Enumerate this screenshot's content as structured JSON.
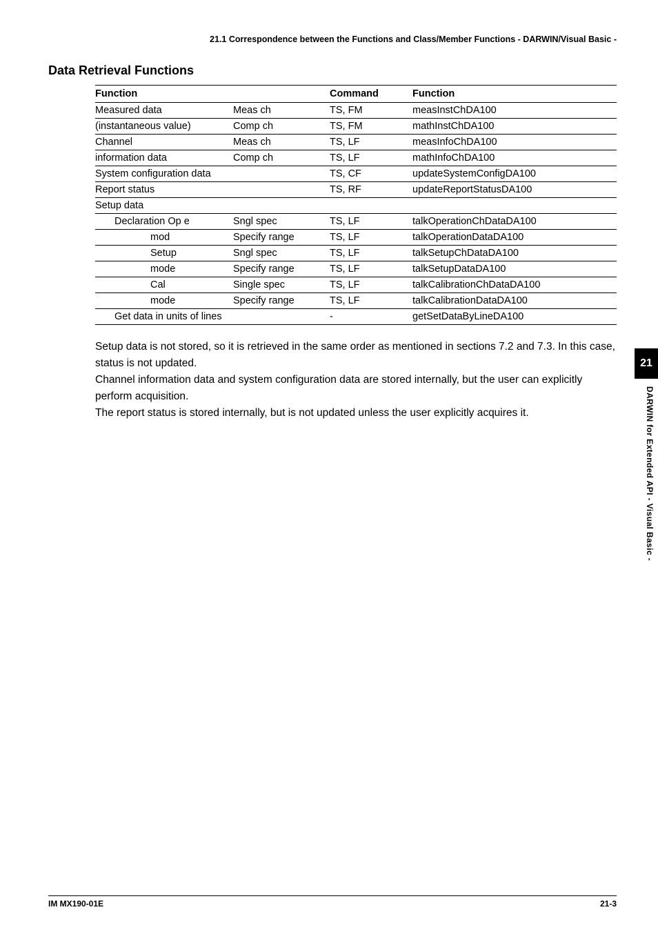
{
  "running_head": "21.1  Correspondence between the Functions and  Class/Member Functions - DARWIN/Visual Basic -",
  "section_title": "Data Retrieval Functions",
  "table": {
    "headers": [
      "Function",
      "",
      "Command",
      "Function"
    ],
    "rows": [
      {
        "c0": "Measured data",
        "c1": "Meas ch",
        "c2": "TS, FM",
        "c3": "measInstChDA100",
        "indent": 0,
        "border": true
      },
      {
        "c0": "(instantaneous value)",
        "c1": "Comp ch",
        "c2": "TS, FM",
        "c3": "mathInstChDA100",
        "indent": 0,
        "border": true
      },
      {
        "c0": "Channel",
        "c1": "Meas ch",
        "c2": "TS, LF",
        "c3": "measInfoChDA100",
        "indent": 0,
        "border": true
      },
      {
        "c0": "information data",
        "c1": "Comp ch",
        "c2": "TS, LF",
        "c3": "mathInfoChDA100",
        "indent": 0,
        "border": true
      },
      {
        "c0": "System configuration data",
        "c1": "",
        "c2": "TS, CF",
        "c3": "updateSystemConfigDA100",
        "indent": 0,
        "border": true
      },
      {
        "c0": "Report status",
        "c1": "",
        "c2": "TS, RF",
        "c3": "updateReportStatusDA100",
        "indent": 0,
        "border": true
      },
      {
        "c0": "Setup data",
        "c1": "",
        "c2": "",
        "c3": "",
        "indent": 0,
        "border": true
      },
      {
        "c0": "Declaration  Op e",
        "c1": "Sngl spec",
        "c2": "TS, LF",
        "c3": "talkOperationChDataDA100",
        "indent": 1,
        "border": true
      },
      {
        "c0": "mod",
        "c1": "Specify range",
        "c2": "TS, LF",
        "c3": "talkOperationDataDA100",
        "indent": 2,
        "border": true
      },
      {
        "c0": "Setup",
        "c1": "Sngl spec",
        "c2": "TS, LF",
        "c3": "talkSetupChDataDA100",
        "indent": 2,
        "border": true
      },
      {
        "c0": "mode",
        "c1": "Specify range",
        "c2": "TS, LF",
        "c3": "talkSetupDataDA100",
        "indent": 2,
        "border": true
      },
      {
        "c0": "Cal",
        "c1": "Single spec",
        "c2": "TS, LF",
        "c3": "talkCalibrationChDataDA100",
        "indent": 2,
        "border": true
      },
      {
        "c0": "mode",
        "c1": "Specify range",
        "c2": "TS, LF",
        "c3": "talkCalibrationDataDA100",
        "indent": 2,
        "border": true
      },
      {
        "c0": "Get data in units of lines",
        "c1": "",
        "c2": "-",
        "c3": "getSetDataByLineDA100",
        "indent": 1,
        "border": true,
        "last": true
      }
    ]
  },
  "paragraphs": [
    "Setup data is not stored, so it is retrieved in the same order as mentioned in sections 7.2 and 7.3.   In this case, status is not updated.",
    "Channel information data and system configuration data are stored internally, but the user can explicitly perform acquisition.",
    "The report status is stored internally, but is not updated unless the user explicitly acquires it."
  ],
  "side_tab_number": "21",
  "side_label": "DARWIN for Extended API - Visual Basic -",
  "footer_left": "IM MX190-01E",
  "footer_right": "21-3"
}
